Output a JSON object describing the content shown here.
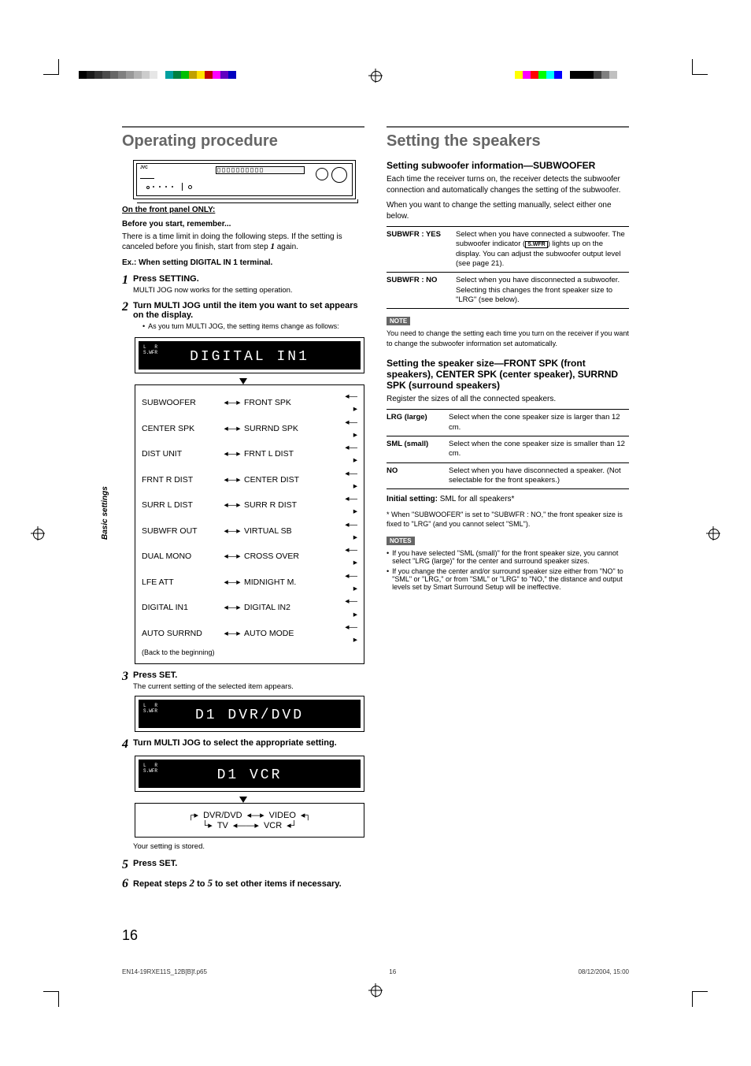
{
  "meta": {
    "filename": "EN14-19RXE11S_12B[B]f.p65",
    "page_small": "16",
    "timestamp": "08/12/2004, 15:00"
  },
  "page_number": "16",
  "side_tab": "Basic settings",
  "colorbar_left": [
    "#000000",
    "#1a1a1a",
    "#333333",
    "#4d4d4d",
    "#666666",
    "#808080",
    "#999999",
    "#b3b3b3",
    "#cccccc",
    "#e6e6e6",
    "#ffffff",
    "#00a0a0",
    "#008040",
    "#00c000",
    "#c0a000",
    "#ffe000",
    "#c00000",
    "#ff00ff",
    "#6000c0",
    "#0000c0"
  ],
  "colorbar_right": [
    "#ffff00",
    "#ff00ff",
    "#ff0000",
    "#00ff00",
    "#00ffff",
    "#0000ff",
    "#ffffff",
    "#000000",
    "#000000",
    "#000000",
    "#404040",
    "#808080",
    "#c0c0c0",
    "#ffffff"
  ],
  "left": {
    "heading": "Operating procedure",
    "subhead": "On the front panel ONLY:",
    "before": "Before you start, remember...",
    "before_body": "There is a time limit in doing the following steps. If the setting is canceled before you finish, start from step ",
    "before_step_ref": "1",
    "before_body_tail": " again.",
    "example": "Ex.: When setting DIGITAL IN 1 terminal.",
    "step1_title": "Press SETTING.",
    "step1_body": "MULTI JOG now works for the setting operation.",
    "step2_title": "Turn MULTI JOG until the item you want to set appears on the display.",
    "step2_bullet": "As you turn MULTI JOG, the setting items change as follows:",
    "display1": "DIGITAL IN1",
    "swfr_label": "L  R\nS.WFR",
    "settings_rows": [
      {
        "l": "SUBWOOFER",
        "r": "FRONT SPK"
      },
      {
        "l": "CENTER SPK",
        "r": "SURRND SPK"
      },
      {
        "l": "DIST UNIT",
        "r": "FRNT L DIST"
      },
      {
        "l": "FRNT R DIST",
        "r": "CENTER DIST"
      },
      {
        "l": "SURR L DIST",
        "r": "SURR R DIST"
      },
      {
        "l": "SUBWFR OUT",
        "r": "VIRTUAL SB"
      },
      {
        "l": "DUAL MONO",
        "r": "CROSS OVER"
      },
      {
        "l": "LFE ATT",
        "r": "MIDNIGHT M."
      },
      {
        "l": "DIGITAL IN1",
        "r": "DIGITAL IN2"
      },
      {
        "l": "AUTO SURRND",
        "r": "AUTO MODE"
      }
    ],
    "settings_back": "(Back to the beginning)",
    "step3_title": "Press SET.",
    "step3_body": "The current setting of the selected item appears.",
    "display2": "D1 DVR/DVD",
    "step4_title": "Turn MULTI JOG to select the appropriate setting.",
    "display3": "D1 VCR",
    "flow": {
      "a": "DVR/DVD",
      "b": "VIDEO",
      "c": "TV",
      "d": "VCR"
    },
    "step4_stored": "Your setting is stored.",
    "step5_title": "Press SET.",
    "step6_a": "Repeat steps ",
    "step6_b": "2",
    "step6_c": " to ",
    "step6_d": "5",
    "step6_e": " to set other items if necessary."
  },
  "right": {
    "heading": "Setting the speakers",
    "sub1": "Setting subwoofer information—SUBWOOFER",
    "sub1_body1": "Each time the receiver turns on, the receiver detects the subwoofer connection and automatically changes the setting of the subwoofer.",
    "sub1_body2": "When you want to change the setting manually, select either one below.",
    "table1": [
      {
        "label": "SUBWFR : YES",
        "body_a": "Select when you have connected a subwoofer. The subwoofer indicator (",
        "swfr": "S.WFR",
        "body_b": ") lights up on the display. You can adjust the subwoofer output level (see page 21)."
      },
      {
        "label": "SUBWFR : NO",
        "body_a": "Select when you have disconnected a subwoofer.\nSelecting this changes the front speaker size to \"LRG\" (see below).",
        "swfr": "",
        "body_b": ""
      }
    ],
    "note1_tag": "NOTE",
    "note1_body": "You need to change the setting each time you turn on the receiver if you want to change the subwoofer information set automatically.",
    "sub2": "Setting the speaker size—FRONT SPK (front speakers), CENTER SPK (center speaker), SURRND SPK (surround speakers)",
    "sub2_body": "Register the sizes of all the connected speakers.",
    "table2": [
      {
        "label": "LRG (large)",
        "body": "Select when the cone speaker size is larger than 12 cm."
      },
      {
        "label": "SML (small)",
        "body": "Select when the cone speaker size is smaller than 12 cm."
      },
      {
        "label": "NO",
        "body": "Select when you have disconnected a speaker. (Not selectable for the front speakers.)"
      }
    ],
    "initial_a": "Initial setting:",
    "initial_b": " SML for all speakers*",
    "footnote": "* When \"SUBWOOFER\" is set to \"SUBWFR : NO,\" the front speaker size is fixed to \"LRG\" (and you cannot select \"SML\").",
    "notes_tag": "NOTES",
    "notes": [
      "If you have selected \"SML (small)\" for the front speaker size, you cannot select \"LRG (large)\" for the center and surround speaker sizes.",
      "If you change the center and/or surround speaker size either from \"NO\" to \"SML\" or \"LRG,\" or from \"SML\" or \"LRG\" to \"NO,\" the distance and output levels set by Smart Surround Setup will be ineffective."
    ]
  }
}
